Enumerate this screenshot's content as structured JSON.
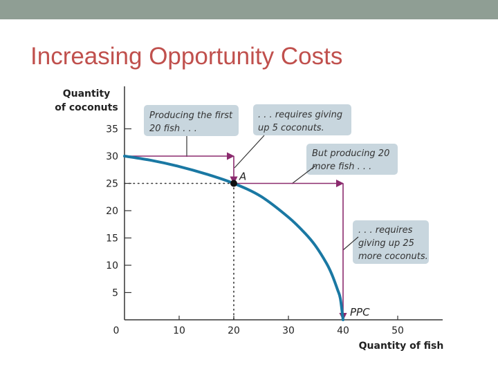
{
  "slide": {
    "title": "Increasing Opportunity Costs",
    "top_bar_color": "#8f9e94",
    "title_color": "#c0504d"
  },
  "chart_data": {
    "type": "line",
    "xlabel": "Quantity of fish",
    "ylabel_lines": [
      "Quantity",
      "of coconuts"
    ],
    "xlim": [
      0,
      58
    ],
    "ylim": [
      0,
      38
    ],
    "x_ticks": [
      0,
      10,
      20,
      30,
      40,
      50
    ],
    "y_ticks": [
      5,
      10,
      15,
      20,
      25,
      30,
      35
    ],
    "series": [
      {
        "name": "PPC",
        "color": "#1a78a3",
        "x": [
          0,
          5,
          10,
          15,
          20,
          25,
          30,
          33,
          35,
          37,
          38,
          39,
          39.5,
          40
        ],
        "y": [
          30,
          29.2,
          28.1,
          26.7,
          25,
          22.6,
          18.8,
          15.9,
          13.5,
          10.3,
          8.2,
          5.5,
          3.9,
          0
        ]
      }
    ],
    "point": {
      "label": "A",
      "x": 20,
      "y": 25
    },
    "curve_label": "PPC",
    "guide_lines": [
      {
        "from": [
          0,
          25
        ],
        "to": [
          20,
          25
        ],
        "style": "dotted"
      },
      {
        "from": [
          20,
          25
        ],
        "to": [
          20,
          0
        ],
        "style": "dotted"
      }
    ],
    "arrows": [
      {
        "from": [
          0,
          30
        ],
        "to": [
          20,
          30
        ]
      },
      {
        "from": [
          20,
          30
        ],
        "to": [
          20,
          25
        ]
      },
      {
        "from": [
          20,
          25
        ],
        "to": [
          40,
          25
        ]
      },
      {
        "from": [
          40,
          25
        ],
        "to": [
          40,
          0
        ]
      }
    ],
    "annotations": [
      {
        "lines": [
          "Producing the first",
          "20 fish . . ."
        ]
      },
      {
        "lines": [
          ". . . requires giving",
          "up 5 coconuts."
        ]
      },
      {
        "lines": [
          "But producing 20",
          "more fish . . ."
        ]
      },
      {
        "lines": [
          ". . . requires",
          "giving up 25",
          "more coconuts."
        ]
      }
    ],
    "arrow_color": "#8b2a6e",
    "annotation_bg": "#c8d6de"
  }
}
